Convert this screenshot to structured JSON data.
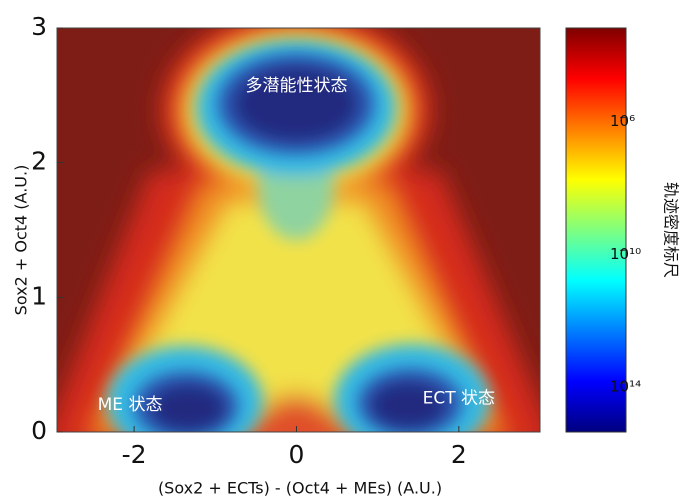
{
  "chart_data": {
    "type": "density",
    "x_label": "(Sox2 + ECTs) - (Oct4 + MEs)   (A.U.)",
    "y_label": "Sox2 + Oct4 (A.U.)",
    "xlim": [
      -2.95,
      3.0
    ],
    "xticks": [
      -2,
      0,
      2
    ],
    "ylim": [
      0,
      3
    ],
    "yticks": [
      0,
      1,
      2,
      3
    ],
    "annotations": [
      {
        "text": "多潜能性状态",
        "x": 0,
        "y": 2.57
      },
      {
        "text": "ME 状态",
        "x": -2.05,
        "y": 0.2
      },
      {
        "text": "ECT 状态",
        "x": 2.0,
        "y": 0.25
      }
    ],
    "colorbar": {
      "label": "轨迹密度标尺",
      "scale": "log",
      "colormap": "jet_r",
      "clim": [
        2000,
        3000000000000000
      ],
      "ticks": [
        {
          "value": 1000000,
          "label": "10⁶"
        },
        {
          "value": 10000000000,
          "label": "10¹⁰"
        },
        {
          "value": 100000000000000,
          "label": "10¹⁴"
        }
      ]
    }
  }
}
